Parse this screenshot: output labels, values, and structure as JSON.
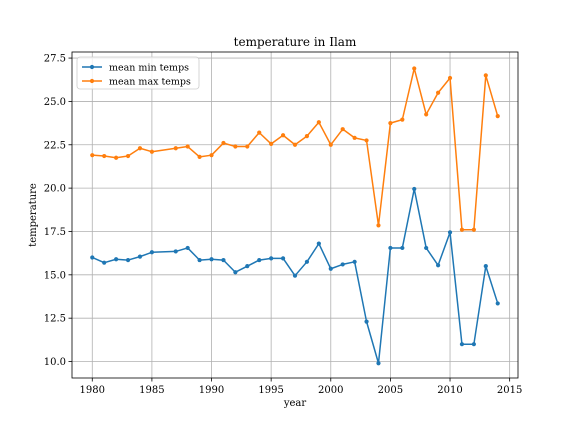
{
  "chart_data": {
    "type": "line",
    "title": "temperature in Ilam",
    "xlabel": "year",
    "ylabel": "temperature",
    "xlim": [
      1978.3,
      2015.7
    ],
    "ylim": [
      9.05,
      27.85
    ],
    "xticks": [
      1980,
      1985,
      1990,
      1995,
      2000,
      2005,
      2010,
      2015
    ],
    "xtick_labels": [
      "1980",
      "1985",
      "1990",
      "1995",
      "2000",
      "2005",
      "2010",
      "2015"
    ],
    "yticks": [
      10.0,
      12.5,
      15.0,
      17.5,
      20.0,
      22.5,
      25.0,
      27.5
    ],
    "ytick_labels": [
      "10.0",
      "12.5",
      "15.0",
      "17.5",
      "20.0",
      "22.5",
      "25.0",
      "27.5"
    ],
    "grid": true,
    "legend_position": "top-left",
    "series": [
      {
        "name": "mean min temps",
        "color": "#1f77b4",
        "points": [
          [
            1980,
            16.0
          ],
          [
            1981,
            15.7
          ],
          [
            1982,
            15.9
          ],
          [
            1983,
            15.85
          ],
          [
            1984,
            16.05
          ],
          [
            1985,
            16.3
          ],
          [
            1987,
            16.35
          ],
          [
            1988,
            16.55
          ],
          [
            1989,
            15.85
          ],
          [
            1990,
            15.9
          ],
          [
            1991,
            15.85
          ],
          [
            1992,
            15.15
          ],
          [
            1993,
            15.5
          ],
          [
            1994,
            15.85
          ],
          [
            1995,
            15.95
          ],
          [
            1996,
            15.95
          ],
          [
            1997,
            14.95
          ],
          [
            1998,
            15.75
          ],
          [
            1999,
            16.8
          ],
          [
            2000,
            15.35
          ],
          [
            2001,
            15.6
          ],
          [
            2002,
            15.75
          ],
          [
            2003,
            12.3
          ],
          [
            2004,
            9.9
          ],
          [
            2005,
            16.55
          ],
          [
            2006,
            16.55
          ],
          [
            2007,
            19.95
          ],
          [
            2008,
            16.55
          ],
          [
            2009,
            15.55
          ],
          [
            2010,
            17.45
          ],
          [
            2011,
            11.0
          ],
          [
            2012,
            11.0
          ],
          [
            2013,
            15.5
          ],
          [
            2014,
            13.35
          ]
        ]
      },
      {
        "name": "mean max temps",
        "color": "#ff7f0e",
        "points": [
          [
            1980,
            21.9
          ],
          [
            1981,
            21.85
          ],
          [
            1982,
            21.75
          ],
          [
            1983,
            21.85
          ],
          [
            1984,
            22.3
          ],
          [
            1985,
            22.1
          ],
          [
            1987,
            22.3
          ],
          [
            1988,
            22.4
          ],
          [
            1989,
            21.8
          ],
          [
            1990,
            21.9
          ],
          [
            1991,
            22.6
          ],
          [
            1992,
            22.4
          ],
          [
            1993,
            22.4
          ],
          [
            1994,
            23.2
          ],
          [
            1995,
            22.55
          ],
          [
            1996,
            23.05
          ],
          [
            1997,
            22.5
          ],
          [
            1998,
            23.0
          ],
          [
            1999,
            23.8
          ],
          [
            2000,
            22.5
          ],
          [
            2001,
            23.4
          ],
          [
            2002,
            22.9
          ],
          [
            2003,
            22.75
          ],
          [
            2004,
            17.85
          ],
          [
            2005,
            23.75
          ],
          [
            2006,
            23.95
          ],
          [
            2007,
            26.9
          ],
          [
            2008,
            24.25
          ],
          [
            2009,
            25.5
          ],
          [
            2010,
            26.35
          ],
          [
            2011,
            17.6
          ],
          [
            2012,
            17.6
          ],
          [
            2013,
            26.5
          ],
          [
            2014,
            24.15
          ]
        ]
      }
    ]
  }
}
